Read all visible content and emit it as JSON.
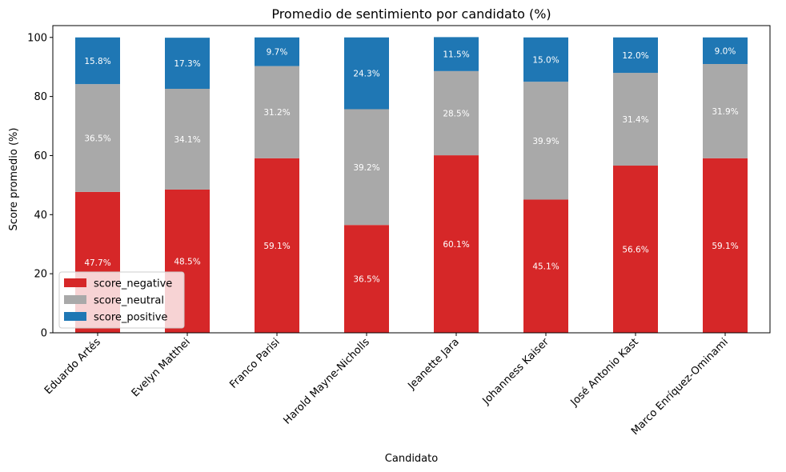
{
  "chart_data": {
    "type": "bar",
    "stacked": true,
    "title": "Promedio de sentimiento por candidato (%)",
    "xlabel": "Candidato",
    "ylabel": "Score promedio (%)",
    "ylim": [
      0,
      104
    ],
    "yticks": [
      0,
      20,
      40,
      60,
      80,
      100
    ],
    "categories": [
      "Eduardo Artés",
      "Evelyn Matthei",
      "Franco Parisi",
      "Harold Mayne-Nicholls",
      "Jeanette Jara",
      "Johanness Kaiser",
      "José Antonio Kast",
      "Marco Enríquez-Ominami"
    ],
    "series": [
      {
        "name": "score_negative",
        "color": "#d62728",
        "values": [
          47.7,
          48.5,
          59.1,
          36.5,
          60.1,
          45.1,
          56.6,
          59.1
        ],
        "labels": [
          "47.7%",
          "48.5%",
          "59.1%",
          "36.5%",
          "60.1%",
          "45.1%",
          "56.6%",
          "59.1%"
        ]
      },
      {
        "name": "score_neutral",
        "color": "#a9a9a9",
        "values": [
          36.5,
          34.1,
          31.2,
          39.2,
          28.5,
          39.9,
          31.4,
          31.9
        ],
        "labels": [
          "36.5%",
          "34.1%",
          "31.2%",
          "39.2%",
          "28.5%",
          "39.9%",
          "31.4%",
          "31.9%"
        ]
      },
      {
        "name": "score_positive",
        "color": "#1f77b4",
        "values": [
          15.8,
          17.3,
          9.7,
          24.3,
          11.5,
          15.0,
          12.0,
          9.0
        ],
        "labels": [
          "15.8%",
          "17.3%",
          "9.7%",
          "24.3%",
          "11.5%",
          "15.0%",
          "12.0%",
          "9.0%"
        ]
      }
    ],
    "legend_position": "lower-left",
    "grid": false
  }
}
